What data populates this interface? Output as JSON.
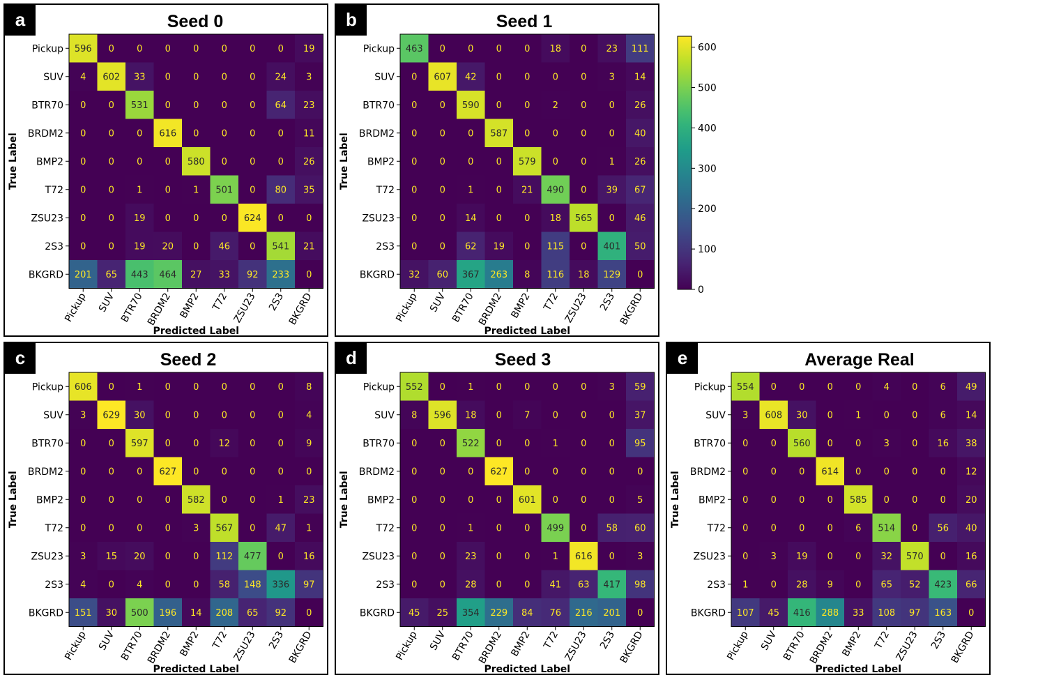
{
  "panels": [
    {
      "letter": "a",
      "title": "Seed 0",
      "matrix": [
        [
          596,
          0,
          0,
          0,
          0,
          0,
          0,
          0,
          19
        ],
        [
          4,
          602,
          33,
          0,
          0,
          0,
          0,
          24,
          3
        ],
        [
          0,
          0,
          531,
          0,
          0,
          0,
          0,
          64,
          23
        ],
        [
          0,
          0,
          0,
          616,
          0,
          0,
          0,
          0,
          11
        ],
        [
          0,
          0,
          0,
          0,
          580,
          0,
          0,
          0,
          26
        ],
        [
          0,
          0,
          1,
          0,
          1,
          501,
          0,
          80,
          35
        ],
        [
          0,
          0,
          19,
          0,
          0,
          0,
          624,
          0,
          0
        ],
        [
          0,
          0,
          19,
          20,
          0,
          46,
          0,
          541,
          21
        ],
        [
          201,
          65,
          443,
          464,
          27,
          33,
          92,
          233,
          0
        ]
      ]
    },
    {
      "letter": "b",
      "title": "Seed 1",
      "matrix": [
        [
          463,
          0,
          0,
          0,
          0,
          18,
          0,
          23,
          111
        ],
        [
          0,
          607,
          42,
          0,
          0,
          0,
          0,
          3,
          14
        ],
        [
          0,
          0,
          590,
          0,
          0,
          2,
          0,
          0,
          26
        ],
        [
          0,
          0,
          0,
          587,
          0,
          0,
          0,
          0,
          40
        ],
        [
          0,
          0,
          0,
          0,
          579,
          0,
          0,
          1,
          26
        ],
        [
          0,
          0,
          1,
          0,
          21,
          490,
          0,
          39,
          67
        ],
        [
          0,
          0,
          14,
          0,
          0,
          18,
          565,
          0,
          46
        ],
        [
          0,
          0,
          62,
          19,
          0,
          115,
          0,
          401,
          50
        ],
        [
          32,
          60,
          367,
          263,
          8,
          116,
          18,
          129,
          0
        ]
      ]
    },
    {
      "letter": "c",
      "title": "Seed 2",
      "matrix": [
        [
          606,
          0,
          1,
          0,
          0,
          0,
          0,
          0,
          8
        ],
        [
          3,
          629,
          30,
          0,
          0,
          0,
          0,
          0,
          4
        ],
        [
          0,
          0,
          597,
          0,
          0,
          12,
          0,
          0,
          9
        ],
        [
          0,
          0,
          0,
          627,
          0,
          0,
          0,
          0,
          0
        ],
        [
          0,
          0,
          0,
          0,
          582,
          0,
          0,
          1,
          23
        ],
        [
          0,
          0,
          0,
          0,
          3,
          567,
          0,
          47,
          1
        ],
        [
          3,
          15,
          20,
          0,
          0,
          112,
          477,
          0,
          16
        ],
        [
          4,
          0,
          4,
          0,
          0,
          58,
          148,
          336,
          97
        ],
        [
          151,
          30,
          500,
          196,
          14,
          208,
          65,
          92,
          0
        ]
      ]
    },
    {
      "letter": "d",
      "title": "Seed 3",
      "matrix": [
        [
          552,
          0,
          1,
          0,
          0,
          0,
          0,
          3,
          59
        ],
        [
          8,
          596,
          18,
          0,
          7,
          0,
          0,
          0,
          37
        ],
        [
          0,
          0,
          522,
          0,
          0,
          1,
          0,
          0,
          95
        ],
        [
          0,
          0,
          0,
          627,
          0,
          0,
          0,
          0,
          0
        ],
        [
          0,
          0,
          0,
          0,
          601,
          0,
          0,
          0,
          5
        ],
        [
          0,
          0,
          1,
          0,
          0,
          499,
          0,
          58,
          60
        ],
        [
          0,
          0,
          23,
          0,
          0,
          1,
          616,
          0,
          3
        ],
        [
          0,
          0,
          28,
          0,
          0,
          41,
          63,
          417,
          98
        ],
        [
          45,
          25,
          354,
          229,
          84,
          76,
          216,
          201,
          0
        ]
      ]
    },
    {
      "letter": "e",
      "title": "Average Real",
      "matrix": [
        [
          554,
          0,
          0,
          0,
          0,
          4,
          0,
          6,
          49
        ],
        [
          3,
          608,
          30,
          0,
          1,
          0,
          0,
          6,
          14
        ],
        [
          0,
          0,
          560,
          0,
          0,
          3,
          0,
          16,
          38
        ],
        [
          0,
          0,
          0,
          614,
          0,
          0,
          0,
          0,
          12
        ],
        [
          0,
          0,
          0,
          0,
          585,
          0,
          0,
          0,
          20
        ],
        [
          0,
          0,
          0,
          0,
          6,
          514,
          0,
          56,
          40
        ],
        [
          0,
          3,
          19,
          0,
          0,
          32,
          570,
          0,
          16
        ],
        [
          1,
          0,
          28,
          9,
          0,
          65,
          52,
          423,
          66
        ],
        [
          107,
          45,
          416,
          288,
          33,
          108,
          97,
          163,
          0
        ]
      ]
    }
  ],
  "chart_data": {
    "type": "heatmap",
    "classes": [
      "Pickup",
      "SUV",
      "BTR70",
      "BRDM2",
      "BMP2",
      "T72",
      "ZSU23",
      "2S3",
      "BKGRD"
    ],
    "xlabel": "Predicted Label",
    "ylabel": "True Label",
    "colorbar": {
      "vmin": 0,
      "vmax": 627,
      "ticks": [
        0,
        100,
        200,
        300,
        400,
        500,
        600
      ]
    },
    "colormap": "viridis"
  }
}
